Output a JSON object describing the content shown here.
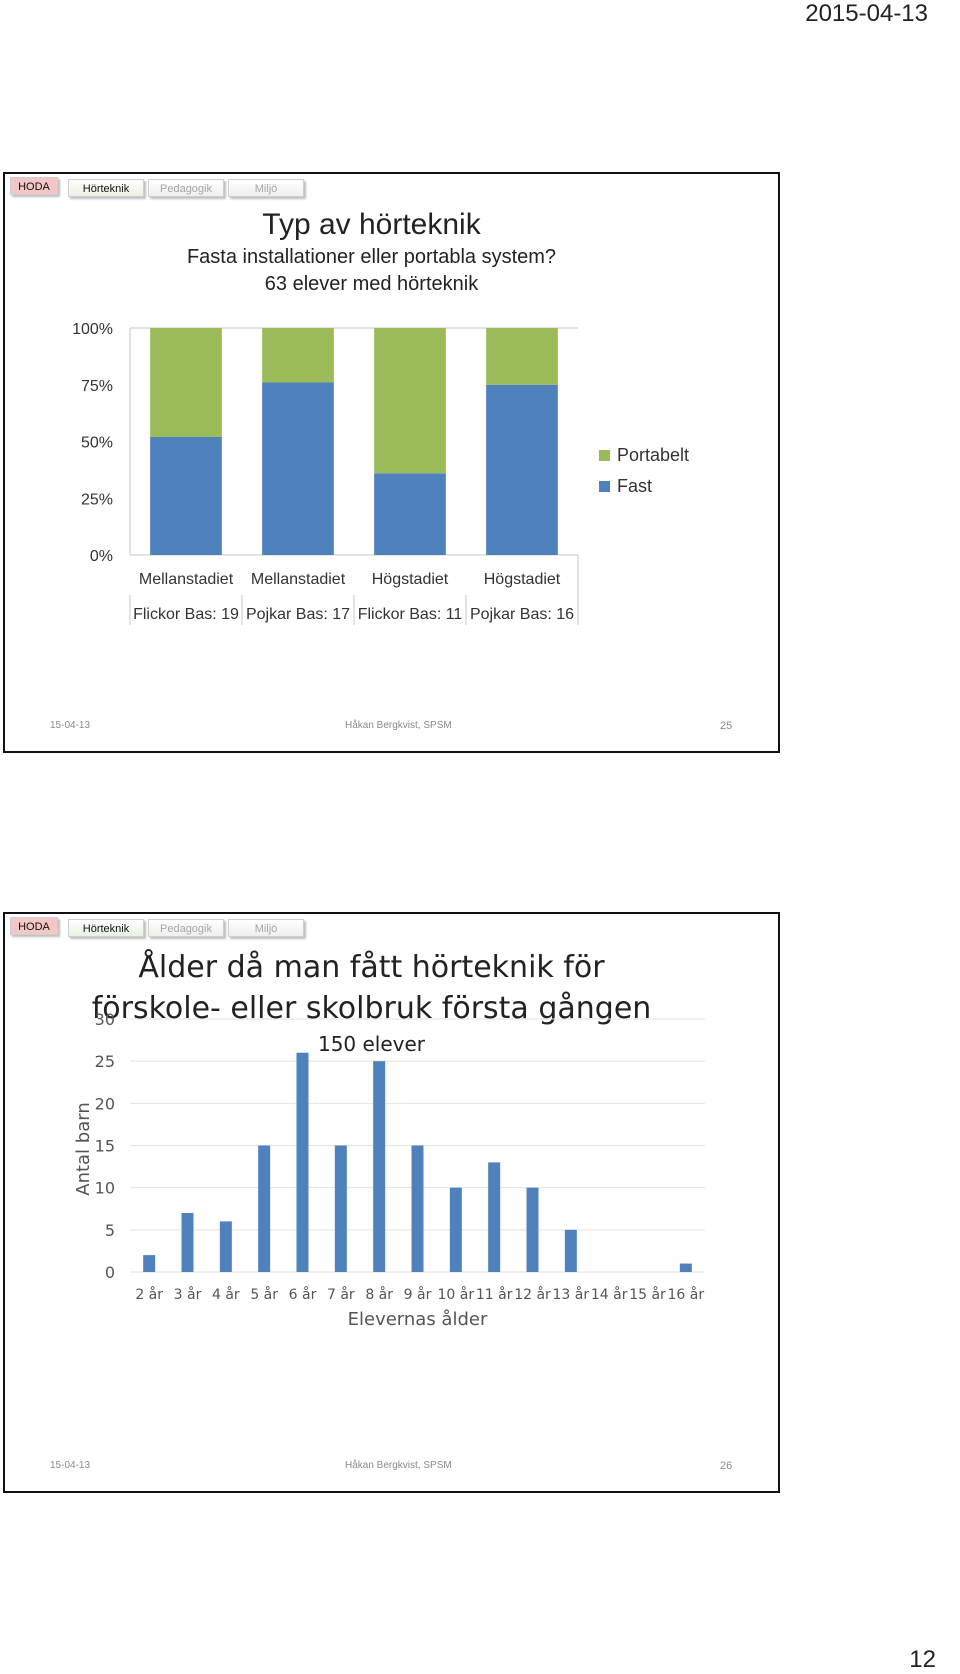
{
  "page": {
    "date": "2015-04-13",
    "number": "12"
  },
  "nav": {
    "hoda": "HODA",
    "tabs": [
      "Hörteknik",
      "Pedagogik",
      "Miljö"
    ]
  },
  "slides": [
    {
      "title": "Typ av hörteknik",
      "subtitle": "Fasta installationer eller portabla system?",
      "subtitle2": "63 elever med hörteknik",
      "footer": {
        "date": "15-04-13",
        "author": "Håkan Bergkvist, SPSM",
        "number": "25"
      }
    },
    {
      "title_line1": "Ålder då man fått hörteknik för",
      "title_line2": "förskole- eller skolbruk första gången",
      "subtitle": "150 elever",
      "footer": {
        "date": "15-04-13",
        "author": "Håkan Bergkvist, SPSM",
        "number": "26"
      }
    }
  ],
  "chart_data": [
    {
      "type": "bar",
      "stacked": "percent",
      "title": "Typ av hörteknik",
      "categories": [
        [
          "Mellanstadiet",
          "Flickor Bas: 19"
        ],
        [
          "Mellanstadiet",
          "Pojkar Bas: 17"
        ],
        [
          "Högstadiet",
          "Flickor Bas: 11"
        ],
        [
          "Högstadiet",
          "Pojkar Bas: 16"
        ]
      ],
      "series": [
        {
          "name": "Fast",
          "color": "#4f81bd",
          "values": [
            52,
            76,
            36,
            75
          ]
        },
        {
          "name": "Portabelt",
          "color": "#9bbb59",
          "values": [
            48,
            24,
            64,
            25
          ]
        }
      ],
      "yticks": [
        "0%",
        "25%",
        "50%",
        "75%",
        "100%"
      ],
      "ylim": [
        0,
        100
      ],
      "legend": "right",
      "grid": false
    },
    {
      "type": "bar",
      "title": "Ålder då man fått hörteknik för förskole- eller skolbruk första gången",
      "categories": [
        "2 år",
        "3 år",
        "4 år",
        "5 år",
        "6 år",
        "7 år",
        "8 år",
        "9 år",
        "10 år",
        "11 år",
        "12 år",
        "13 år",
        "14 år",
        "15 år",
        "16 år"
      ],
      "values": [
        2,
        7,
        6,
        15,
        26,
        15,
        25,
        15,
        10,
        13,
        10,
        5,
        0,
        0,
        1
      ],
      "color": "#4f81bd",
      "xlabel": "Elevernas ålder",
      "ylabel": "Antal barn",
      "yticks": [
        "0",
        "5",
        "10",
        "15",
        "20",
        "25",
        "30"
      ],
      "ylim": [
        0,
        30
      ],
      "grid": true
    }
  ]
}
